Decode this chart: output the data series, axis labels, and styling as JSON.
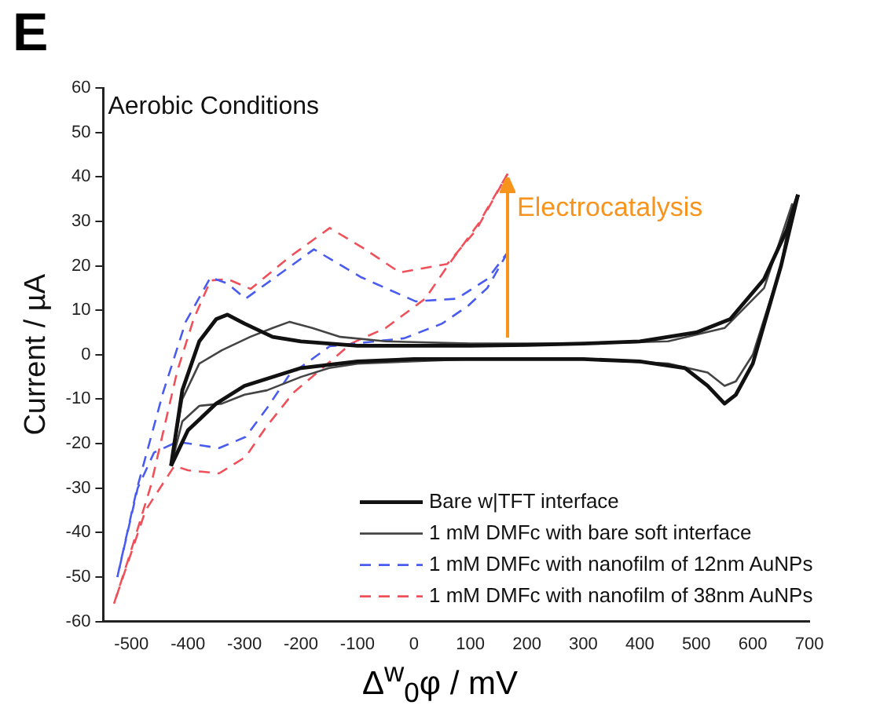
{
  "chart_data": {
    "type": "line",
    "title": "Aerobic Conditions",
    "xlabel": "Δ$^{w}$$_{0}$φ / mV",
    "ylabel": "Current / µA",
    "annotations": [
      "E",
      {
        "text": "Electrocatalysis",
        "x": 166,
        "y": 40
      }
    ],
    "xlim": [
      -550,
      700
    ],
    "xticks": [
      -500,
      -400,
      -300,
      -200,
      -100,
      0,
      100,
      200,
      300,
      400,
      500,
      600,
      700
    ],
    "ylim": [
      -60,
      60
    ],
    "yticks": [
      -60,
      -50,
      -40,
      -30,
      -20,
      -10,
      0,
      10,
      20,
      30,
      40,
      50,
      60
    ],
    "legend": "bottom right",
    "series": [
      {
        "name": "Bare w|TFT interface",
        "color": "#111111",
        "line_style": "solid",
        "x": [
          -430,
          -410,
          -380,
          -350,
          -330,
          -300,
          -250,
          -200,
          -100,
          0,
          100,
          200,
          300,
          400,
          500,
          560,
          620,
          660,
          680
        ],
        "values": [
          -25,
          -8,
          3,
          8,
          9,
          7,
          4,
          3,
          2,
          2,
          2,
          2.2,
          2.5,
          3,
          5,
          8,
          17,
          28,
          36
        ]
      },
      {
        "color": "#111111",
        "line_style": "solid",
        "x": [
          680,
          650,
          600,
          570,
          550,
          520,
          480,
          400,
          300,
          200,
          100,
          0,
          -100,
          -200,
          -300,
          -350,
          -400,
          -430
        ],
        "values": [
          36,
          20,
          -2,
          -9,
          -11,
          -7,
          -3,
          -1.5,
          -1,
          -1,
          -1,
          -1,
          -1.5,
          -3,
          -7,
          -11,
          -17,
          -25
        ]
      },
      {
        "name": "1 mM DMFc with bare soft interface",
        "color": "#444444",
        "line_style": "solid",
        "x": [
          -430,
          -410,
          -380,
          -340,
          -290,
          -250,
          -220,
          -180,
          -130,
          -50,
          100,
          300,
          450,
          550,
          620,
          670
        ],
        "values": [
          -25,
          -10,
          -2,
          1,
          4,
          6,
          7.4,
          6,
          4,
          3,
          2.5,
          2.5,
          3,
          6,
          15,
          34
        ]
      },
      {
        "color": "#444444",
        "line_style": "solid",
        "x": [
          670,
          650,
          600,
          570,
          550,
          520,
          450,
          300,
          100,
          -100,
          -150,
          -200,
          -260,
          -300,
          -340,
          -380,
          -410,
          -430
        ],
        "values": [
          34,
          20,
          0,
          -6,
          -7,
          -4,
          -2,
          -1,
          -1,
          -2,
          -3,
          -5,
          -8,
          -9,
          -11,
          -11.5,
          -15,
          -25
        ]
      },
      {
        "name": "1 mM DMFc with nanofilm of 12nm AuNPs",
        "color": "#4a5cf0",
        "line_style": "dashed",
        "x": [
          -525,
          -490,
          -444,
          -404,
          -360,
          -330,
          -298,
          -250,
          -177,
          -93,
          3,
          76,
          130,
          166
        ],
        "values": [
          -50,
          -30,
          -8.5,
          7.4,
          17.4,
          16,
          12.6,
          17,
          23.7,
          17.4,
          12,
          12.6,
          17,
          23
        ]
      },
      {
        "color": "#4a5cf0",
        "line_style": "dashed",
        "x": [
          166,
          130,
          96,
          50,
          -17,
          -149,
          -222,
          -260,
          -298,
          -345,
          -419,
          -460,
          -489,
          -525
        ],
        "values": [
          23,
          15,
          11,
          7,
          3.7,
          1.9,
          -4.8,
          -12,
          -18.5,
          -21,
          -19.6,
          -22,
          -30,
          -50
        ]
      },
      {
        "name": "1 mM DMFc with nanofilm of 38nm AuNPs",
        "color": "#f0505a",
        "line_style": "dashed",
        "x": [
          -531,
          -503,
          -466,
          -419,
          -390,
          -360,
          -330,
          -289,
          -220,
          -149,
          -90,
          -25,
          59,
          110,
          166
        ],
        "values": [
          -56,
          -45,
          -29.6,
          -3.7,
          8,
          16.7,
          17,
          14.8,
          22,
          28.5,
          24,
          18.5,
          20.4,
          28,
          40.7
        ]
      },
      {
        "color": "#f0505a",
        "line_style": "dashed",
        "x": [
          166,
          115,
          60,
          20,
          -50,
          -110,
          -213,
          -260,
          -298,
          -345,
          -400,
          -424,
          -475,
          -531
        ],
        "values": [
          40.7,
          29.6,
          20,
          12.6,
          6,
          2.6,
          -8.5,
          -16,
          -23,
          -26.7,
          -26,
          -25,
          -35,
          -56
        ]
      }
    ]
  }
}
